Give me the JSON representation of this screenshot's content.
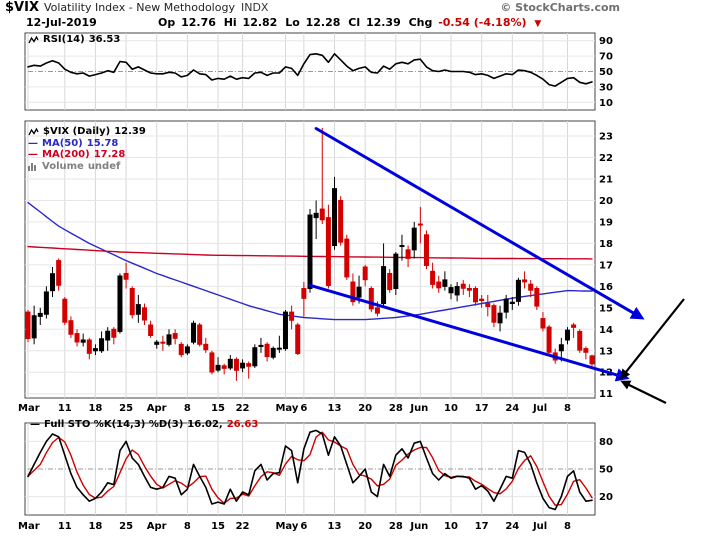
{
  "header": {
    "symbol": "$VIX",
    "name": "Volatility Index - New Methodology",
    "exchange": "INDX",
    "copyright": "© StockCharts.com",
    "date": "12-Jul-2019",
    "quote": {
      "op_label": "Op",
      "op_value": "12.76",
      "hi_label": "Hi",
      "hi_value": "12.82",
      "lo_label": "Lo",
      "lo_value": "12.28",
      "cl_label": "Cl",
      "cl_value": "12.39",
      "chg_label": "Chg",
      "chg_value": "-0.54 (-4.18%)",
      "chg_arrow": "▼"
    }
  },
  "colors": {
    "up": "#000000",
    "down": "#d40000",
    "ma50": "#2929c8",
    "ma200": "#cc0022",
    "trend": "#0000dd",
    "annotation": "#000000",
    "grid": "#d8d8d8",
    "grid_light": "#e6e6e6",
    "dash": "#999999",
    "border": "#444444",
    "negative": "#cc0000",
    "volume_legend": "#808080",
    "copyright": "#707070",
    "stoch_k": "#000000",
    "stoch_d": "#cc0000",
    "rsi": "#000000"
  },
  "rsi_panel": {
    "legend_label": "RSI(14)",
    "legend_value": "36.53"
  },
  "main_panel": {
    "legend_symbol": "$VIX (Daily)",
    "legend_close": "12.39",
    "ma50_label": "MA(50)",
    "ma50_value": "15.78",
    "ma200_label": "MA(200)",
    "ma200_value": "17.28",
    "volume_label": "Volume",
    "volume_value": "undef"
  },
  "sto_panel": {
    "legend_label": "Full STO %K(14,3) %D(3)",
    "k_value": "16.02,",
    "d_value": "26.63"
  },
  "chart_data": [
    {
      "type": "line",
      "title": "RSI(14)",
      "last_value": 36.53,
      "ylim": [
        0,
        100
      ],
      "yticks": [
        90,
        70,
        50,
        30,
        10
      ],
      "refline": 50,
      "values": [
        56,
        58,
        57,
        61,
        64,
        61,
        53,
        49,
        47,
        48,
        44,
        46,
        48,
        51,
        49,
        63,
        62,
        53,
        56,
        52,
        48,
        47,
        47,
        49,
        48,
        43,
        45,
        52,
        47,
        46,
        39,
        41,
        40,
        44,
        40,
        42,
        41,
        48,
        49,
        45,
        48,
        48,
        56,
        54,
        45,
        60,
        72,
        73,
        71,
        62,
        73,
        65,
        57,
        51,
        54,
        56,
        49,
        48,
        57,
        53,
        60,
        62,
        60,
        65,
        66,
        56,
        51,
        50,
        52,
        50,
        50,
        50,
        49,
        46,
        47,
        45,
        41,
        44,
        47,
        46,
        52,
        51,
        49,
        45,
        40,
        33,
        31,
        36,
        41,
        42,
        36,
        34,
        36.53
      ]
    },
    {
      "type": "candlestick",
      "title": "$VIX (Daily)",
      "last_close": 12.39,
      "ylim": [
        10.8,
        23.7
      ],
      "yticks": [
        23,
        22,
        21,
        20,
        19,
        18,
        17,
        16,
        15,
        14,
        13,
        12,
        11
      ],
      "xticks": [
        {
          "i": 0,
          "label": "Mar",
          "month": true
        },
        {
          "i": 6,
          "label": "11"
        },
        {
          "i": 11,
          "label": "18"
        },
        {
          "i": 16,
          "label": "25"
        },
        {
          "i": 21,
          "label": "Apr",
          "month": true
        },
        {
          "i": 26,
          "label": "8"
        },
        {
          "i": 31,
          "label": "15"
        },
        {
          "i": 35,
          "label": "22"
        },
        {
          "i": 42,
          "label": "May",
          "month": true
        },
        {
          "i": 45,
          "label": "6"
        },
        {
          "i": 50,
          "label": "13"
        },
        {
          "i": 55,
          "label": "20"
        },
        {
          "i": 60,
          "label": "28"
        },
        {
          "i": 64,
          "label": "Jun",
          "month": true
        },
        {
          "i": 69,
          "label": "10"
        },
        {
          "i": 74,
          "label": "17"
        },
        {
          "i": 79,
          "label": "24"
        },
        {
          "i": 84,
          "label": "Jul",
          "month": true
        },
        {
          "i": 88,
          "label": "8"
        }
      ],
      "ohlc": [
        [
          14.8,
          14.9,
          13.4,
          13.57
        ],
        [
          13.6,
          15.1,
          13.3,
          14.63
        ],
        [
          14.6,
          15.0,
          14.2,
          14.74
        ],
        [
          14.7,
          16.0,
          14.5,
          15.74
        ],
        [
          15.8,
          16.9,
          15.5,
          16.59
        ],
        [
          17.2,
          17.3,
          15.8,
          16.05
        ],
        [
          15.4,
          15.5,
          14.2,
          14.33
        ],
        [
          14.4,
          14.6,
          13.6,
          13.77
        ],
        [
          13.8,
          14.0,
          13.2,
          13.41
        ],
        [
          13.4,
          13.8,
          13.2,
          13.5
        ],
        [
          13.5,
          13.6,
          12.6,
          12.88
        ],
        [
          13.0,
          13.3,
          12.8,
          13.1
        ],
        [
          13.0,
          13.9,
          12.9,
          13.56
        ],
        [
          13.5,
          14.1,
          13.0,
          13.91
        ],
        [
          14.0,
          14.1,
          13.3,
          13.63
        ],
        [
          13.9,
          16.6,
          13.8,
          16.48
        ],
        [
          16.6,
          17.1,
          15.9,
          16.33
        ],
        [
          15.9,
          16.0,
          14.5,
          14.68
        ],
        [
          14.7,
          15.6,
          14.3,
          15.15
        ],
        [
          15.0,
          15.2,
          14.2,
          14.43
        ],
        [
          14.2,
          14.4,
          13.6,
          13.71
        ],
        [
          13.3,
          13.5,
          13.1,
          13.4
        ],
        [
          13.4,
          13.7,
          13.0,
          13.36
        ],
        [
          13.3,
          14.0,
          13.2,
          13.74
        ],
        [
          13.8,
          14.0,
          13.3,
          13.58
        ],
        [
          13.3,
          13.4,
          12.7,
          12.82
        ],
        [
          12.9,
          13.3,
          12.8,
          13.18
        ],
        [
          13.4,
          14.4,
          13.3,
          14.28
        ],
        [
          14.2,
          14.3,
          13.2,
          13.3
        ],
        [
          13.3,
          13.6,
          12.9,
          13.05
        ],
        [
          12.9,
          13.0,
          11.9,
          12.01
        ],
        [
          12.1,
          12.7,
          12.0,
          12.32
        ],
        [
          12.3,
          12.4,
          11.9,
          12.18
        ],
        [
          12.2,
          12.8,
          12.1,
          12.6
        ],
        [
          12.6,
          12.7,
          11.6,
          12.09
        ],
        [
          12.2,
          12.6,
          12.0,
          12.42
        ],
        [
          12.4,
          12.5,
          11.7,
          12.28
        ],
        [
          12.3,
          13.3,
          12.2,
          13.14
        ],
        [
          13.2,
          13.6,
          12.9,
          13.25
        ],
        [
          13.3,
          13.4,
          12.5,
          12.73
        ],
        [
          12.7,
          13.2,
          12.6,
          13.11
        ],
        [
          13.1,
          13.7,
          12.9,
          13.12
        ],
        [
          13.1,
          14.9,
          13.0,
          14.8
        ],
        [
          14.8,
          15.1,
          14.0,
          14.42
        ],
        [
          14.2,
          14.3,
          12.8,
          12.87
        ],
        [
          15.9,
          16.2,
          14.6,
          15.44
        ],
        [
          15.9,
          19.6,
          15.7,
          19.32
        ],
        [
          19.2,
          20.0,
          18.2,
          19.4
        ],
        [
          19.6,
          23.38,
          18.9,
          19.1
        ],
        [
          19.2,
          19.8,
          15.9,
          16.04
        ],
        [
          17.9,
          21.1,
          17.7,
          20.55
        ],
        [
          20.0,
          20.2,
          17.9,
          18.06
        ],
        [
          18.2,
          18.4,
          16.3,
          16.44
        ],
        [
          16.2,
          16.6,
          15.1,
          15.29
        ],
        [
          15.5,
          16.5,
          15.2,
          15.96
        ],
        [
          16.9,
          17.0,
          16.0,
          16.31
        ],
        [
          15.9,
          16.0,
          14.8,
          14.95
        ],
        [
          15.0,
          15.3,
          14.6,
          14.75
        ],
        [
          15.2,
          18.0,
          15.1,
          16.92
        ],
        [
          16.6,
          16.8,
          15.7,
          15.85
        ],
        [
          15.9,
          17.6,
          15.6,
          17.5
        ],
        [
          17.9,
          18.4,
          17.2,
          17.9
        ],
        [
          17.7,
          17.9,
          16.9,
          17.3
        ],
        [
          17.7,
          19.0,
          17.3,
          18.71
        ],
        [
          18.9,
          19.7,
          18.0,
          18.86
        ],
        [
          18.4,
          18.6,
          16.8,
          16.97
        ],
        [
          16.7,
          17.1,
          15.9,
          16.09
        ],
        [
          16.2,
          16.5,
          15.7,
          15.93
        ],
        [
          16.0,
          16.7,
          15.8,
          16.3
        ],
        [
          15.7,
          16.1,
          15.4,
          15.94
        ],
        [
          15.6,
          16.2,
          15.3,
          15.99
        ],
        [
          16.1,
          16.3,
          15.6,
          15.91
        ],
        [
          15.9,
          16.1,
          15.5,
          15.82
        ],
        [
          15.9,
          16.0,
          15.1,
          15.28
        ],
        [
          15.4,
          15.6,
          15.0,
          15.34
        ],
        [
          15.2,
          15.6,
          14.6,
          15.06
        ],
        [
          15.1,
          15.2,
          14.1,
          14.33
        ],
        [
          14.3,
          15.1,
          13.9,
          14.75
        ],
        [
          14.8,
          15.6,
          14.5,
          15.4
        ],
        [
          15.2,
          15.5,
          14.9,
          15.26
        ],
        [
          15.3,
          16.4,
          15.1,
          16.28
        ],
        [
          16.3,
          16.7,
          15.9,
          16.21
        ],
        [
          16.1,
          16.3,
          15.5,
          15.82
        ],
        [
          15.9,
          16.0,
          14.9,
          15.08
        ],
        [
          14.5,
          14.8,
          13.9,
          14.06
        ],
        [
          14.1,
          14.2,
          12.8,
          12.93
        ],
        [
          12.9,
          13.1,
          12.4,
          12.57
        ],
        [
          13.0,
          13.6,
          12.5,
          13.28
        ],
        [
          13.5,
          14.1,
          13.3,
          13.96
        ],
        [
          14.2,
          14.3,
          13.6,
          14.09
        ],
        [
          13.9,
          14.0,
          12.9,
          13.03
        ],
        [
          13.1,
          13.2,
          12.6,
          12.93
        ],
        [
          12.76,
          12.82,
          12.28,
          12.39
        ]
      ],
      "overlays": [
        {
          "name": "MA(50)",
          "last": 15.78,
          "color_key": "ma50",
          "points": [
            [
              0,
              19.9
            ],
            [
              5,
              18.8
            ],
            [
              10,
              18.0
            ],
            [
              16,
              17.2
            ],
            [
              21,
              16.6
            ],
            [
              26,
              16.1
            ],
            [
              31,
              15.6
            ],
            [
              36,
              15.1
            ],
            [
              41,
              14.7
            ],
            [
              45,
              14.55
            ],
            [
              50,
              14.45
            ],
            [
              55,
              14.45
            ],
            [
              60,
              14.55
            ],
            [
              64,
              14.7
            ],
            [
              69,
              14.95
            ],
            [
              74,
              15.2
            ],
            [
              79,
              15.45
            ],
            [
              84,
              15.65
            ],
            [
              88,
              15.8
            ],
            [
              92,
              15.78
            ]
          ]
        },
        {
          "name": "MA(200)",
          "last": 17.28,
          "color_key": "ma200",
          "points": [
            [
              0,
              17.85
            ],
            [
              15,
              17.6
            ],
            [
              30,
              17.45
            ],
            [
              45,
              17.4
            ],
            [
              60,
              17.35
            ],
            [
              75,
              17.3
            ],
            [
              92,
              17.28
            ]
          ]
        }
      ],
      "trendlines": [
        {
          "i1": 47,
          "v1": 23.35,
          "i2": 100,
          "v2": 14.55
        },
        {
          "i1": 46,
          "v1": 16.05,
          "i2": 97.5,
          "v2": 11.75
        }
      ],
      "pointer_lines": [
        {
          "x1": 684,
          "y1": 184,
          "x2": 622,
          "y2": 262
        },
        {
          "x1": 666,
          "y1": 288,
          "x2": 623,
          "y2": 267
        }
      ]
    },
    {
      "type": "line",
      "title": "Full STO %K(14,3) %D(3)",
      "last_k": 16.02,
      "last_d": 26.63,
      "ylim": [
        0,
        100
      ],
      "yticks": [
        80,
        50,
        20
      ],
      "refline": 50,
      "k": [
        42,
        55,
        68,
        80,
        88,
        85,
        65,
        45,
        30,
        22,
        15,
        18,
        25,
        35,
        33,
        70,
        80,
        62,
        55,
        42,
        30,
        28,
        30,
        42,
        40,
        22,
        28,
        55,
        42,
        30,
        12,
        14,
        12,
        28,
        15,
        25,
        22,
        48,
        55,
        38,
        45,
        46,
        75,
        70,
        35,
        72,
        90,
        92,
        88,
        65,
        85,
        75,
        55,
        35,
        42,
        50,
        25,
        20,
        55,
        42,
        65,
        72,
        62,
        78,
        80,
        62,
        45,
        38,
        45,
        40,
        42,
        42,
        40,
        28,
        32,
        26,
        15,
        28,
        42,
        40,
        70,
        68,
        55,
        35,
        18,
        8,
        6,
        20,
        42,
        48,
        25,
        15,
        16.02
      ]
    }
  ]
}
